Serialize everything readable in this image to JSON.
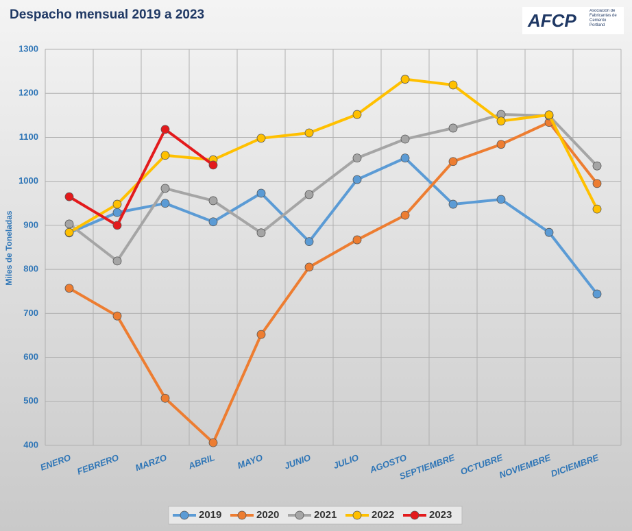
{
  "chart_data": {
    "type": "line",
    "title": "Despacho mensual 2019 a 2023",
    "logo": "AFCP",
    "logo_subtitle": "Asociación de Fabricantes de Cemento Portland",
    "ylabel": "Miles de Toneladas",
    "categories": [
      "ENERO",
      "FEBRERO",
      "MARZO",
      "ABRIL",
      "MAYO",
      "JUNIO",
      "JULIO",
      "AGOSTO",
      "SEPTIEMBRE",
      "OCTUBRE",
      "NOVIEMBRE",
      "DICIEMBRE"
    ],
    "ylim": [
      400,
      1300
    ],
    "yticks": [
      400,
      500,
      600,
      700,
      800,
      900,
      1000,
      1100,
      1200,
      1300
    ],
    "grid": true,
    "legend": "bottom",
    "series": [
      {
        "name": "2019",
        "color": "#5b9bd5",
        "values": [
          883,
          929,
          950,
          908,
          973,
          863,
          1004,
          1053,
          948,
          959,
          884,
          744
        ]
      },
      {
        "name": "2020",
        "color": "#ed7d31",
        "values": [
          757,
          694,
          507,
          406,
          652,
          805,
          867,
          923,
          1045,
          1084,
          1134,
          995
        ]
      },
      {
        "name": "2021",
        "color": "#a5a5a5",
        "values": [
          903,
          819,
          984,
          956,
          883,
          970,
          1053,
          1096,
          1121,
          1152,
          1149,
          1035
        ]
      },
      {
        "name": "2022",
        "color": "#ffc000",
        "values": [
          884,
          948,
          1059,
          1049,
          1098,
          1110,
          1152,
          1232,
          1219,
          1137,
          1151,
          937
        ]
      },
      {
        "name": "2023",
        "color": "#e31a1c",
        "values": [
          965,
          900,
          1118,
          1037,
          null,
          null,
          null,
          null,
          null,
          null,
          null,
          null
        ]
      }
    ]
  }
}
